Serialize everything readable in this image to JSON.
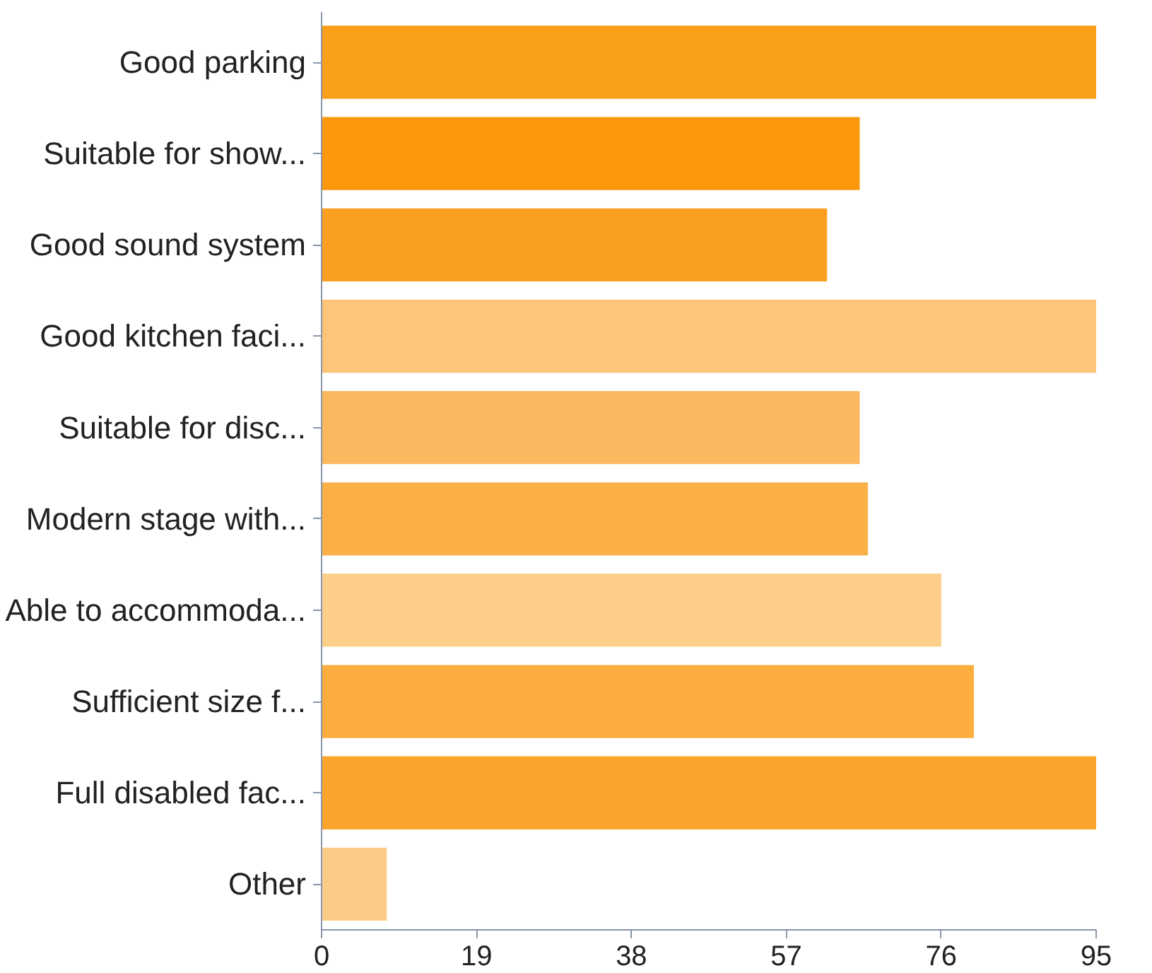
{
  "chart_data": {
    "type": "bar",
    "orientation": "horizontal",
    "categories": [
      "Good parking",
      "Suitable for show...",
      "Good sound system",
      "Good kitchen faci...",
      "Suitable for disc...",
      "Modern stage with...",
      "Able to accommoda...",
      "Sufficient size f...",
      "Full disabled fac...",
      "Other"
    ],
    "values": [
      95,
      66,
      62,
      95,
      66,
      67,
      76,
      80,
      95,
      8
    ],
    "colors": [
      "#fa9f1a",
      "#fb970a",
      "#fa9f22",
      "#fdc57a",
      "#fcb85e",
      "#fbaf47",
      "#fdce8a",
      "#fbad3e",
      "#fba42c",
      "#fdcb88"
    ],
    "xlim": [
      0,
      95
    ],
    "xticks": [
      0,
      19,
      38,
      57,
      76,
      95
    ],
    "grid": false
  }
}
